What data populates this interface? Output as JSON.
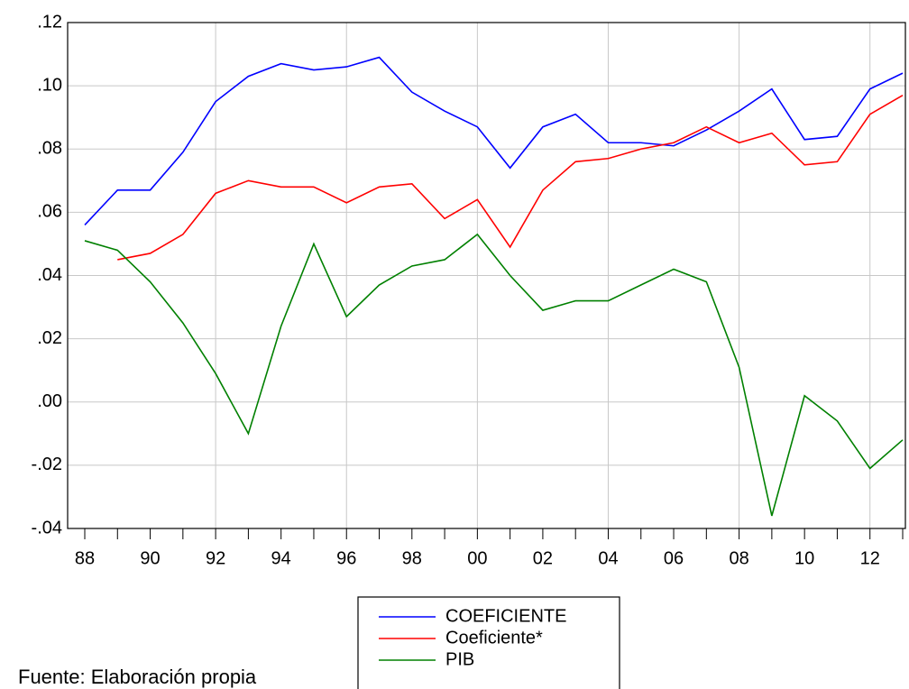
{
  "chart_data": {
    "type": "line",
    "categories": [
      "88",
      null,
      "90",
      null,
      "92",
      null,
      "94",
      null,
      "96",
      null,
      "98",
      null,
      "00",
      null,
      "02",
      null,
      "04",
      null,
      "06",
      null,
      "08",
      null,
      "10",
      null,
      "12",
      null
    ],
    "series": [
      {
        "name": "COEFICIENTE",
        "color": "#0000ff",
        "values": [
          0.056,
          0.067,
          0.067,
          0.079,
          0.095,
          0.103,
          0.107,
          0.105,
          0.106,
          0.109,
          0.098,
          0.092,
          0.087,
          0.074,
          0.087,
          0.091,
          0.082,
          0.082,
          0.081,
          0.086,
          0.092,
          0.099,
          0.083,
          0.084,
          0.099,
          0.104
        ]
      },
      {
        "name": "Coeficiente*",
        "color": "#ff0000",
        "values": [
          null,
          0.045,
          0.047,
          0.053,
          0.066,
          0.07,
          0.068,
          0.068,
          0.063,
          0.068,
          0.069,
          0.058,
          0.064,
          0.049,
          0.067,
          0.076,
          0.077,
          0.08,
          0.082,
          0.087,
          0.082,
          0.085,
          0.075,
          0.076,
          0.091,
          0.097
        ]
      },
      {
        "name": "PIB",
        "color": "#008000",
        "values": [
          0.051,
          0.048,
          0.038,
          0.025,
          0.009,
          -0.01,
          0.024,
          0.05,
          0.027,
          0.037,
          0.043,
          0.045,
          0.053,
          0.04,
          0.029,
          0.032,
          0.032,
          0.037,
          0.042,
          0.038,
          0.011,
          -0.036,
          0.002,
          -0.006,
          -0.021,
          -0.012
        ]
      }
    ],
    "ylim": [
      -0.04,
      0.12
    ],
    "yticks": [
      {
        "value": -0.04,
        "label": "-.04"
      },
      {
        "value": -0.02,
        "label": "-.02"
      },
      {
        "value": 0,
        "label": ".00"
      },
      {
        "value": 0.02,
        "label": ".02"
      },
      {
        "value": 0.04,
        "label": ".04"
      },
      {
        "value": 0.06,
        "label": ".06"
      },
      {
        "value": 0.08,
        "label": ".08"
      },
      {
        "value": 0.1,
        "label": ".10"
      },
      {
        "value": 0.12,
        "label": ".12"
      }
    ],
    "grid": true,
    "source": "Fuente: Elaboración propia"
  }
}
